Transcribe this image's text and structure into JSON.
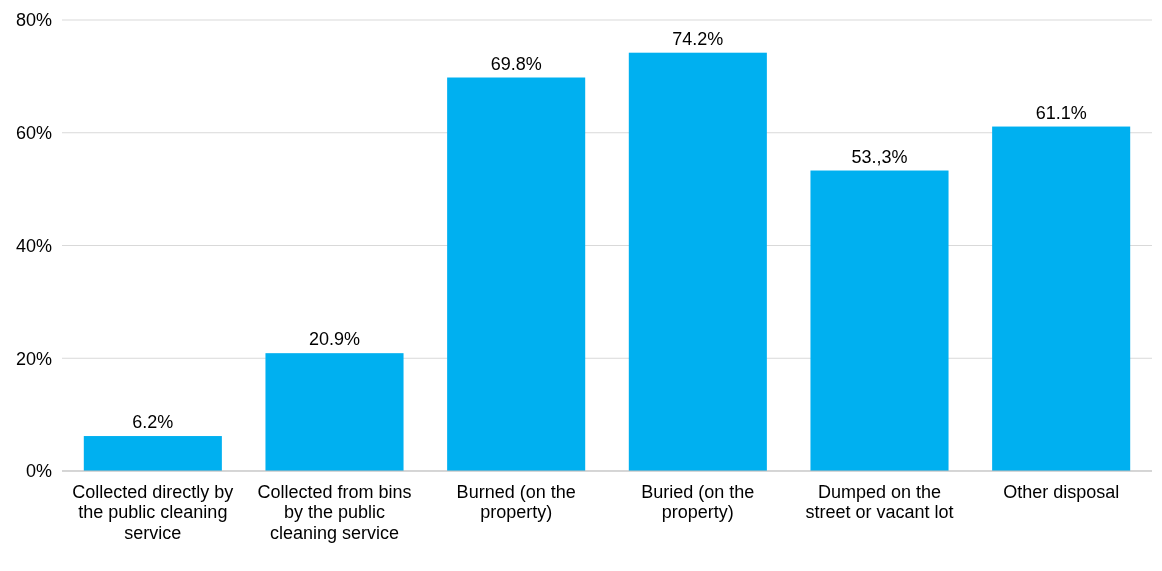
{
  "chart_data": {
    "type": "bar",
    "categories": [
      "Collected directly by the public cleaning service",
      "Collected from bins by the public cleaning service",
      "Burned (on the property)",
      "Buried (on the property)",
      "Dumped on the street or vacant lot",
      "Other disposal"
    ],
    "values": [
      6.2,
      20.9,
      69.8,
      74.2,
      53.3,
      61.1
    ],
    "value_labels": [
      "6.2%",
      "20.9%",
      "69.8%",
      "74.2%",
      "53.,3%",
      "61.1%"
    ],
    "color": "#00b0f0",
    "ylim": [
      0,
      80
    ],
    "yticks": [
      {
        "value": 0,
        "label": "0%"
      },
      {
        "value": 20,
        "label": "20%"
      },
      {
        "value": 40,
        "label": "40%"
      },
      {
        "value": 60,
        "label": "60%"
      },
      {
        "value": 80,
        "label": "80%"
      }
    ],
    "grid": "y"
  }
}
